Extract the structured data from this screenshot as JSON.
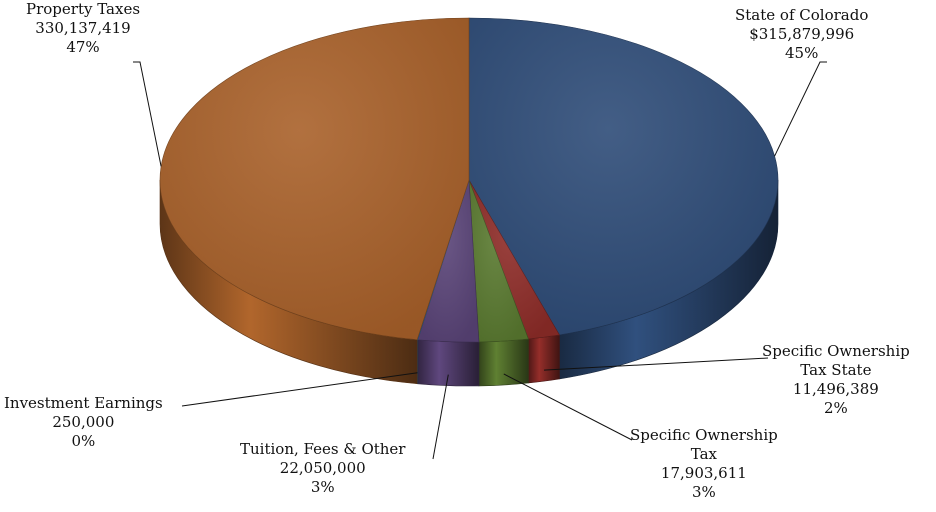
{
  "chart_data": {
    "type": "pie",
    "title": "",
    "style": "3d",
    "slices": [
      {
        "label": "State of Colorado",
        "value": 315879996,
        "value_text": "$315,879,996",
        "percent": "45%",
        "color": "#2e4c78"
      },
      {
        "label": "Specific Ownership Tax State",
        "label_lines": [
          "Specific Ownership",
          "Tax State"
        ],
        "value": 11496389,
        "value_text": "11,496,389",
        "percent": "2%",
        "color": "#8e2c28"
      },
      {
        "label": "Specific Ownership Tax",
        "label_lines": [
          "Specific Ownership",
          "Tax"
        ],
        "value": 17903611,
        "value_text": "17,903,611",
        "percent": "3%",
        "color": "#5a7a30"
      },
      {
        "label": "Tuition, Fees & Other",
        "value": 22050000,
        "value_text": "22,050,000",
        "percent": "3%",
        "color": "#5a4478"
      },
      {
        "label": "Investment Earnings",
        "value": 250000,
        "value_text": "250,000",
        "percent": "0%",
        "color": "#3a6fa8"
      },
      {
        "label": "Property Taxes",
        "value": 330137419,
        "value_text": "330,137,419",
        "percent": "47%",
        "color": "#a9612a"
      }
    ]
  }
}
